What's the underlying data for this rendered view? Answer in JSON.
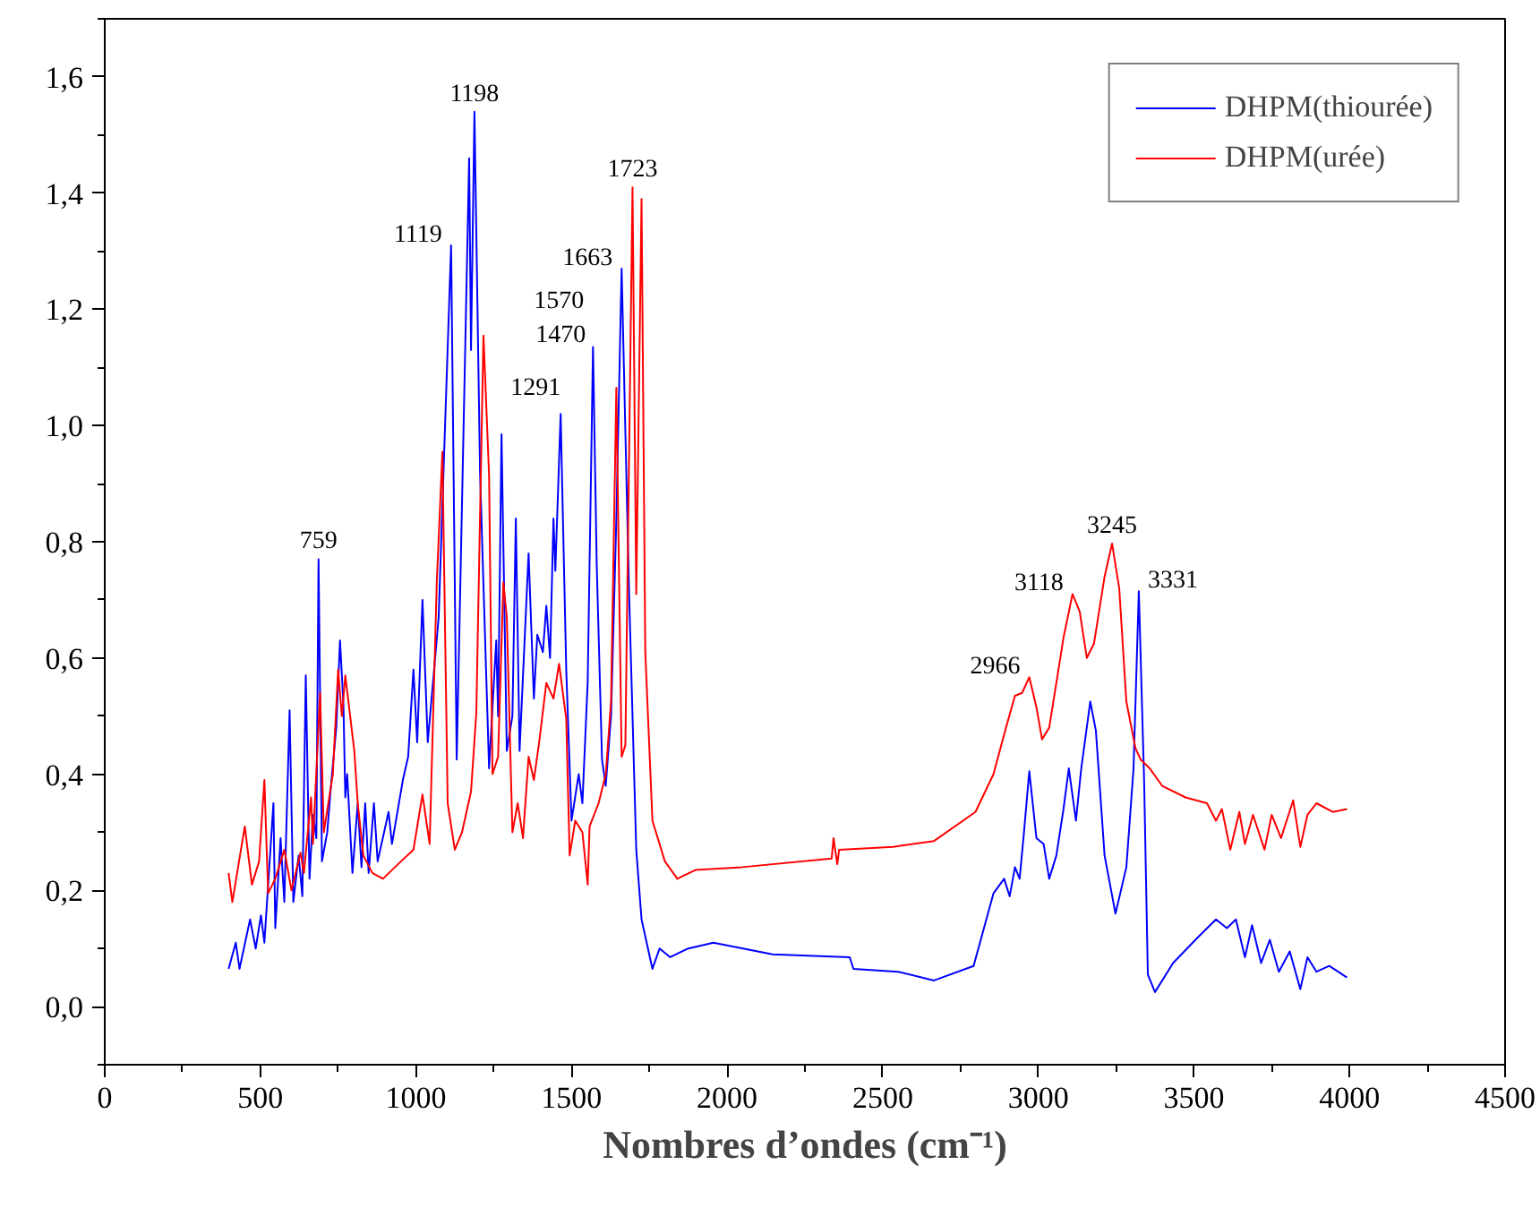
{
  "chart_data": {
    "type": "line",
    "xlabel": "Nombres d’ondes (cm⁻¹)",
    "xlim": [
      0,
      4500
    ],
    "ylim": [
      -0.1,
      1.7
    ],
    "xticks": [
      0,
      {
        "value": 250,
        "label": null
      },
      500,
      {
        "value": 750,
        "label": null
      },
      1000,
      {
        "value": 1250,
        "label": null
      },
      1500,
      {
        "value": 1750,
        "label": null
      },
      2000,
      {
        "value": 2250,
        "label": null
      },
      2500,
      {
        "value": 2750,
        "label": null
      },
      3000,
      {
        "value": 3250,
        "label": null
      },
      3500,
      {
        "value": 3750,
        "label": null
      },
      4000,
      {
        "value": 4250,
        "label": null
      },
      4500
    ],
    "yticks": [
      {
        "value": -0.1,
        "label": null
      },
      {
        "value": 0.0,
        "label": "0,0"
      },
      {
        "value": 0.1,
        "label": null
      },
      {
        "value": 0.2,
        "label": "0,2"
      },
      {
        "value": 0.3,
        "label": null
      },
      {
        "value": 0.4,
        "label": "0,4"
      },
      {
        "value": 0.5,
        "label": null
      },
      {
        "value": 0.6,
        "label": "0,6"
      },
      {
        "value": 0.7,
        "label": null
      },
      {
        "value": 0.8,
        "label": "0,8"
      },
      {
        "value": 0.9,
        "label": null
      },
      {
        "value": 1.0,
        "label": "1,0"
      },
      {
        "value": 1.1,
        "label": null
      },
      {
        "value": 1.2,
        "label": "1,2"
      },
      {
        "value": 1.3,
        "label": null
      },
      {
        "value": 1.4,
        "label": "1,4"
      },
      {
        "value": 1.5,
        "label": null
      },
      {
        "value": 1.6,
        "label": "1,6"
      },
      {
        "value": 1.7,
        "label": null
      }
    ],
    "grid": false,
    "legend": "top right",
    "series": [
      {
        "name": "DHPM(thiourée)",
        "color": "#0000ff",
        "x": [
          398,
          421,
          433,
          467,
          485,
          502,
          513,
          542,
          548,
          565,
          577,
          594,
          606,
          623,
          635,
          646,
          658,
          669,
          680,
          687,
          698,
          715,
          727,
          744,
          756,
          767,
          773,
          779,
          796,
          813,
          825,
          837,
          848,
          865,
          877,
          912,
          923,
          958,
          975,
          992,
          1004,
          1021,
          1038,
          1073,
          1113,
          1131,
          1171,
          1177,
          1188,
          1206,
          1235,
          1258,
          1264,
          1275,
          1292,
          1310,
          1321,
          1333,
          1362,
          1379,
          1390,
          1408,
          1419,
          1431,
          1442,
          1448,
          1465,
          1483,
          1500,
          1523,
          1535,
          1552,
          1569,
          1581,
          1598,
          1610,
          1627,
          1644,
          1661,
          1685,
          1708,
          1725,
          1760,
          1783,
          1817,
          1875,
          1956,
          2146,
          2394,
          2406,
          2550,
          2665,
          2792,
          2856,
          2890,
          2908,
          2925,
          2940,
          2954,
          2971,
          2994,
          3017,
          3035,
          3058,
          3081,
          3098,
          3121,
          3138,
          3167,
          3185,
          3213,
          3248,
          3283,
          3306,
          3323,
          3340,
          3352,
          3375,
          3433,
          3514,
          3571,
          3606,
          3635,
          3664,
          3687,
          3716,
          3744,
          3773,
          3808,
          3842,
          3865,
          3894,
          3935,
          3992
        ],
        "values": [
          0.065,
          0.11,
          0.065,
          0.15,
          0.1,
          0.157,
          0.11,
          0.35,
          0.135,
          0.29,
          0.18,
          0.51,
          0.18,
          0.26,
          0.19,
          0.57,
          0.22,
          0.33,
          0.29,
          0.77,
          0.25,
          0.3,
          0.38,
          0.48,
          0.63,
          0.52,
          0.36,
          0.4,
          0.23,
          0.35,
          0.24,
          0.35,
          0.23,
          0.35,
          0.25,
          0.335,
          0.28,
          0.39,
          0.43,
          0.58,
          0.455,
          0.7,
          0.455,
          0.67,
          1.31,
          0.425,
          1.46,
          1.13,
          1.54,
          0.92,
          0.41,
          0.63,
          0.5,
          0.985,
          0.44,
          0.5,
          0.84,
          0.44,
          0.78,
          0.53,
          0.64,
          0.61,
          0.69,
          0.6,
          0.84,
          0.75,
          1.02,
          0.58,
          0.32,
          0.4,
          0.35,
          0.56,
          1.135,
          0.76,
          0.425,
          0.38,
          0.5,
          0.84,
          1.27,
          0.71,
          0.27,
          0.15,
          0.065,
          0.1,
          0.085,
          0.1,
          0.11,
          0.09,
          0.085,
          0.065,
          0.06,
          0.045,
          0.07,
          0.195,
          0.22,
          0.19,
          0.24,
          0.22,
          0.3,
          0.405,
          0.29,
          0.28,
          0.22,
          0.26,
          0.34,
          0.41,
          0.32,
          0.41,
          0.525,
          0.475,
          0.26,
          0.16,
          0.24,
          0.41,
          0.715,
          0.39,
          0.055,
          0.025,
          0.075,
          0.12,
          0.15,
          0.135,
          0.15,
          0.085,
          0.14,
          0.075,
          0.115,
          0.06,
          0.095,
          0.03,
          0.085,
          0.06,
          0.07,
          0.05
        ]
      },
      {
        "name": "DHPM(urée)",
        "color": "#ff0000",
        "x": [
          398,
          410,
          450,
          473,
          496,
          513,
          525,
          548,
          577,
          600,
          629,
          640,
          663,
          669,
          692,
          704,
          733,
          750,
          762,
          773,
          802,
          813,
          831,
          860,
          894,
          952,
          992,
          1021,
          1044,
          1067,
          1085,
          1102,
          1125,
          1148,
          1177,
          1194,
          1217,
          1235,
          1246,
          1264,
          1281,
          1292,
          1310,
          1327,
          1344,
          1362,
          1379,
          1396,
          1419,
          1442,
          1460,
          1483,
          1494,
          1512,
          1535,
          1552,
          1558,
          1587,
          1610,
          1627,
          1644,
          1661,
          1673,
          1696,
          1708,
          1725,
          1737,
          1760,
          1800,
          1840,
          1898,
          2048,
          2336,
          2342,
          2354,
          2360,
          2533,
          2665,
          2798,
          2856,
          2896,
          2925,
          2948,
          2971,
          2994,
          3012,
          3035,
          3058,
          3081,
          3110,
          3133,
          3156,
          3179,
          3213,
          3237,
          3260,
          3283,
          3312,
          3329,
          3358,
          3398,
          3473,
          3542,
          3571,
          3590,
          3617,
          3646,
          3664,
          3690,
          3727,
          3750,
          3780,
          3819,
          3842,
          3865,
          3894,
          3946,
          3992
        ],
        "values": [
          0.23,
          0.18,
          0.31,
          0.21,
          0.25,
          0.39,
          0.195,
          0.22,
          0.27,
          0.2,
          0.265,
          0.23,
          0.36,
          0.28,
          0.54,
          0.3,
          0.4,
          0.58,
          0.5,
          0.57,
          0.44,
          0.35,
          0.26,
          0.23,
          0.22,
          0.25,
          0.27,
          0.365,
          0.28,
          0.73,
          0.955,
          0.35,
          0.27,
          0.3,
          0.37,
          0.505,
          1.155,
          0.915,
          0.4,
          0.43,
          0.73,
          0.67,
          0.3,
          0.35,
          0.29,
          0.43,
          0.39,
          0.455,
          0.557,
          0.53,
          0.59,
          0.495,
          0.26,
          0.32,
          0.3,
          0.21,
          0.31,
          0.35,
          0.4,
          0.525,
          1.065,
          0.43,
          0.45,
          1.41,
          0.71,
          1.39,
          0.61,
          0.32,
          0.25,
          0.22,
          0.235,
          0.24,
          0.255,
          0.29,
          0.245,
          0.27,
          0.275,
          0.285,
          0.335,
          0.4,
          0.48,
          0.535,
          0.54,
          0.567,
          0.515,
          0.46,
          0.48,
          0.557,
          0.635,
          0.71,
          0.68,
          0.6,
          0.625,
          0.74,
          0.797,
          0.72,
          0.525,
          0.445,
          0.425,
          0.41,
          0.38,
          0.36,
          0.35,
          0.32,
          0.34,
          0.27,
          0.335,
          0.28,
          0.33,
          0.27,
          0.33,
          0.29,
          0.355,
          0.275,
          0.33,
          0.35,
          0.335,
          0.34
        ]
      }
    ],
    "annotations": [
      {
        "text": "759",
        "x": 687,
        "y": 0.77
      },
      {
        "text": "1119",
        "x": 1113,
        "y": 1.31
      },
      {
        "text": "1198",
        "x": 1188,
        "y": 1.54
      },
      {
        "text": "1291",
        "x": 1275,
        "y": 0.985
      },
      {
        "text": "1470",
        "x": 1465,
        "y": 1.02
      },
      {
        "text": "1570",
        "x": 1569,
        "y": 1.135
      },
      {
        "text": "1663",
        "x": 1661,
        "y": 1.27
      },
      {
        "text": "1723",
        "x": 1696,
        "y": 1.41
      },
      {
        "text": "2966",
        "x": 2971,
        "y": 0.567
      },
      {
        "text": "3118",
        "x": 3110,
        "y": 0.71
      },
      {
        "text": "3245",
        "x": 3237,
        "y": 0.797
      },
      {
        "text": "3331",
        "x": 3323,
        "y": 0.715
      }
    ]
  }
}
